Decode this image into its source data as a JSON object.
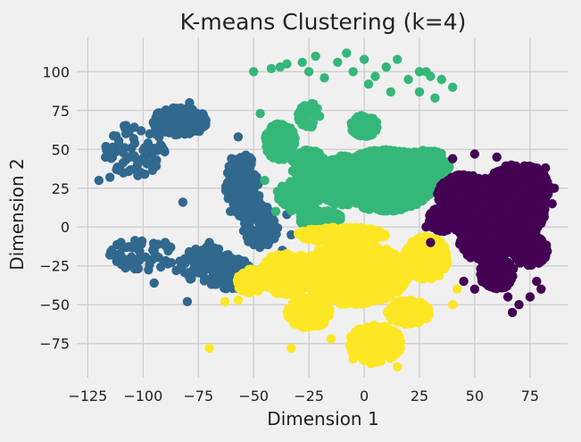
{
  "chart_data": {
    "type": "scatter",
    "title": "K-means Clustering (k=4)",
    "xlabel": "Dimension 1",
    "ylabel": "Dimension 2",
    "xlim": [
      -130,
      92
    ],
    "ylim": [
      -97,
      122
    ],
    "xticks": [
      -125,
      -100,
      -75,
      -50,
      -25,
      0,
      25,
      50,
      75
    ],
    "yticks": [
      -75,
      -50,
      -25,
      0,
      25,
      50,
      75,
      100
    ],
    "xtick_labels": [
      "−125",
      "−100",
      "−75",
      "−50",
      "−25",
      "0",
      "25",
      "50",
      "75"
    ],
    "ytick_labels": [
      "−75",
      "−50",
      "−25",
      "0",
      "25",
      "50",
      "75",
      "100"
    ],
    "grid": true,
    "style": "fivethirtyeight",
    "clusters": [
      {
        "color": "#31688e",
        "blobs": [
          {
            "cx": -83,
            "cy": 68,
            "rx": 13,
            "ry": 9,
            "n": 220
          },
          {
            "cx": -103,
            "cy": 50,
            "rx": 14,
            "ry": 17,
            "n": 70
          },
          {
            "cx": -100,
            "cy": -18,
            "rx": 16,
            "ry": 10,
            "n": 60
          },
          {
            "cx": -70,
            "cy": -25,
            "rx": 14,
            "ry": 12,
            "n": 80
          },
          {
            "cx": -55,
            "cy": 25,
            "rx": 8,
            "ry": 22,
            "n": 120
          },
          {
            "cx": -47,
            "cy": 0,
            "rx": 8,
            "ry": 14,
            "n": 120
          },
          {
            "cx": -60,
            "cy": -30,
            "rx": 10,
            "ry": 10,
            "n": 90
          }
        ],
        "points": [
          [
            -120,
            30
          ],
          [
            -115,
            32
          ],
          [
            -112,
            37
          ],
          [
            -117,
            45
          ],
          [
            -97,
            60
          ],
          [
            -92,
            65
          ],
          [
            -79,
            80
          ],
          [
            -82,
            16
          ],
          [
            -80,
            -48
          ],
          [
            -110,
            -10
          ],
          [
            -115,
            -18
          ],
          [
            -95,
            -36
          ],
          [
            -85,
            -28
          ],
          [
            -90,
            -10
          ],
          [
            -70,
            -10
          ],
          [
            -52,
            -42
          ],
          [
            -37,
            -15
          ],
          [
            -33,
            -5
          ],
          [
            -35,
            8
          ],
          [
            -57,
            58
          ],
          [
            -60,
            44
          ]
        ]
      },
      {
        "color": "#35b779",
        "blobs": [
          {
            "cx": 10,
            "cy": 30,
            "rx": 22,
            "ry": 20,
            "n": 1400
          },
          {
            "cx": -10,
            "cy": 30,
            "rx": 14,
            "ry": 16,
            "n": 350
          },
          {
            "cx": -38,
            "cy": 55,
            "rx": 7,
            "ry": 12,
            "n": 220
          },
          {
            "cx": -30,
            "cy": 20,
            "rx": 10,
            "ry": 10,
            "n": 150
          },
          {
            "cx": 27,
            "cy": 40,
            "rx": 12,
            "ry": 10,
            "n": 200
          },
          {
            "cx": 0,
            "cy": 65,
            "rx": 6,
            "ry": 7,
            "n": 120
          },
          {
            "cx": -25,
            "cy": 72,
            "rx": 5,
            "ry": 8,
            "n": 50
          },
          {
            "cx": -20,
            "cy": 5,
            "rx": 10,
            "ry": 6,
            "n": 200
          },
          {
            "cx": -25,
            "cy": 40,
            "rx": 8,
            "ry": 10,
            "n": 120
          }
        ],
        "points": [
          [
            -50,
            100
          ],
          [
            -42,
            102
          ],
          [
            -35,
            105
          ],
          [
            -28,
            106
          ],
          [
            -25,
            100
          ],
          [
            -22,
            110
          ],
          [
            -18,
            96
          ],
          [
            -12,
            106
          ],
          [
            -8,
            112
          ],
          [
            -5,
            100
          ],
          [
            0,
            108
          ],
          [
            2,
            92
          ],
          [
            5,
            97
          ],
          [
            10,
            103
          ],
          [
            15,
            108
          ],
          [
            20,
            95
          ],
          [
            25,
            100
          ],
          [
            30,
            97
          ],
          [
            35,
            95
          ],
          [
            40,
            90
          ],
          [
            -47,
            73
          ],
          [
            -38,
            103
          ],
          [
            -45,
            30
          ],
          [
            -40,
            10
          ],
          [
            12,
            87
          ],
          [
            25,
            87
          ],
          [
            32,
            83
          ],
          [
            28,
            100
          ]
        ]
      },
      {
        "color": "#fde725",
        "blobs": [
          {
            "cx": -5,
            "cy": -30,
            "rx": 25,
            "ry": 20,
            "n": 1000
          },
          {
            "cx": -35,
            "cy": -30,
            "rx": 12,
            "ry": 14,
            "n": 280
          },
          {
            "cx": 5,
            "cy": -75,
            "rx": 12,
            "ry": 12,
            "n": 320
          },
          {
            "cx": 28,
            "cy": -20,
            "rx": 10,
            "ry": 14,
            "n": 300
          },
          {
            "cx": -25,
            "cy": -55,
            "rx": 10,
            "ry": 10,
            "n": 170
          },
          {
            "cx": -50,
            "cy": -35,
            "rx": 8,
            "ry": 8,
            "n": 100
          },
          {
            "cx": 20,
            "cy": -55,
            "rx": 10,
            "ry": 8,
            "n": 180
          },
          {
            "cx": -10,
            "cy": -5,
            "rx": 20,
            "ry": 5,
            "n": 220
          }
        ],
        "points": [
          [
            -70,
            -78
          ],
          [
            -63,
            -48
          ],
          [
            -57,
            -47
          ],
          [
            -47,
            -38
          ],
          [
            -5,
            -85
          ],
          [
            3,
            -88
          ],
          [
            15,
            -90
          ],
          [
            -15,
            -72
          ],
          [
            -33,
            -78
          ],
          [
            40,
            -50
          ],
          [
            42,
            -40
          ],
          [
            -44,
            -28
          ],
          [
            -40,
            -22
          ]
        ]
      },
      {
        "color": "#440154",
        "blobs": [
          {
            "cx": 60,
            "cy": 10,
            "rx": 22,
            "ry": 22,
            "n": 1100
          },
          {
            "cx": 70,
            "cy": 25,
            "rx": 14,
            "ry": 16,
            "n": 400
          },
          {
            "cx": 45,
            "cy": 20,
            "rx": 12,
            "ry": 14,
            "n": 300
          },
          {
            "cx": 55,
            "cy": -10,
            "rx": 12,
            "ry": 12,
            "n": 260
          },
          {
            "cx": 60,
            "cy": -30,
            "rx": 8,
            "ry": 10,
            "n": 150
          },
          {
            "cx": 75,
            "cy": -15,
            "rx": 8,
            "ry": 10,
            "n": 130
          },
          {
            "cx": 35,
            "cy": 5,
            "rx": 6,
            "ry": 8,
            "n": 140
          }
        ],
        "points": [
          [
            67,
            -55
          ],
          [
            70,
            -50
          ],
          [
            65,
            -45
          ],
          [
            78,
            -35
          ],
          [
            75,
            -45
          ],
          [
            80,
            -40
          ],
          [
            50,
            -40
          ],
          [
            45,
            -35
          ],
          [
            30,
            -10
          ],
          [
            28,
            0
          ],
          [
            85,
            15
          ],
          [
            86,
            25
          ],
          [
            82,
            38
          ],
          [
            60,
            45
          ],
          [
            50,
            47
          ],
          [
            40,
            44
          ]
        ]
      }
    ]
  }
}
